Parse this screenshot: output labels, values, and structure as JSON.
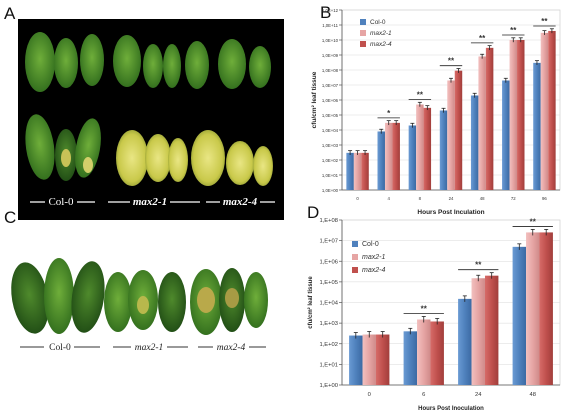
{
  "panels": {
    "a": "A",
    "b": "B",
    "c": "C",
    "d": "D"
  },
  "photo_a": {
    "labels": [
      "Col-0",
      "max2-1",
      "max2-4"
    ],
    "background": "#000000"
  },
  "photo_c": {
    "labels": [
      "Col-0",
      "max2-1",
      "max2-4"
    ],
    "background": "#ffffff"
  },
  "colors": {
    "col0": "#4f81bd",
    "max2_1": "#e6a5a4",
    "max2_4": "#c0504d"
  },
  "chart_data": [
    {
      "id": "B",
      "type": "bar",
      "log_scale": true,
      "xlabel": "Hours Post Inculation",
      "ylabel": "cfu/cm² leaf tissue",
      "categories": [
        "0",
        "4",
        "8",
        "24",
        "48",
        "72",
        "96"
      ],
      "ylim": [
        1,
        1000000000000.0
      ],
      "ytick_labels": [
        "1,0E+00",
        "1,0E+01",
        "1,0E+02",
        "1,0E+03",
        "1,0E+04",
        "1,0E+05",
        "1,0E+06",
        "1,0E+07",
        "1,0E+08",
        "1,0E+09",
        "1,0E+10",
        "1,0E+11",
        "1,0E+12"
      ],
      "legend": [
        "Col-0",
        "max2-1",
        "max2-4"
      ],
      "legend_position": "top-left",
      "series": [
        {
          "name": "Col-0",
          "values": [
            300,
            8000,
            20000,
            200000,
            2000000,
            20000000,
            300000000
          ]
        },
        {
          "name": "max2-1",
          "values": [
            300,
            30000,
            500000,
            20000000,
            800000000,
            10000000000,
            30000000000
          ]
        },
        {
          "name": "max2-4",
          "values": [
            300,
            30000,
            300000,
            90000000,
            3000000000,
            10000000000,
            40000000000
          ]
        }
      ],
      "significance": [
        "",
        "*",
        "**",
        "**",
        "**",
        "**",
        "**"
      ]
    },
    {
      "id": "D",
      "type": "bar",
      "log_scale": true,
      "xlabel": "Hours Post Inoculation",
      "ylabel": "cfu/cm² leaf tissue",
      "categories": [
        "0",
        "6",
        "24",
        "48"
      ],
      "ylim": [
        1,
        100000000.0
      ],
      "ytick_labels": [
        "1,E+00",
        "1,E+01",
        "1,E+02",
        "1,E+03",
        "1,E+04",
        "1,E+05",
        "1,E+06",
        "1,E+07",
        "1,E+08"
      ],
      "legend": [
        "Col-0",
        "max2-1",
        "max2-4"
      ],
      "legend_position": "top-left",
      "series": [
        {
          "name": "Col-0",
          "values": [
            250,
            400,
            15000,
            5000000
          ]
        },
        {
          "name": "max2-1",
          "values": [
            280,
            1500,
            150000,
            25000000
          ]
        },
        {
          "name": "max2-4",
          "values": [
            280,
            1200,
            200000,
            25000000
          ]
        }
      ],
      "significance": [
        "",
        "**",
        "**",
        "**"
      ]
    }
  ]
}
